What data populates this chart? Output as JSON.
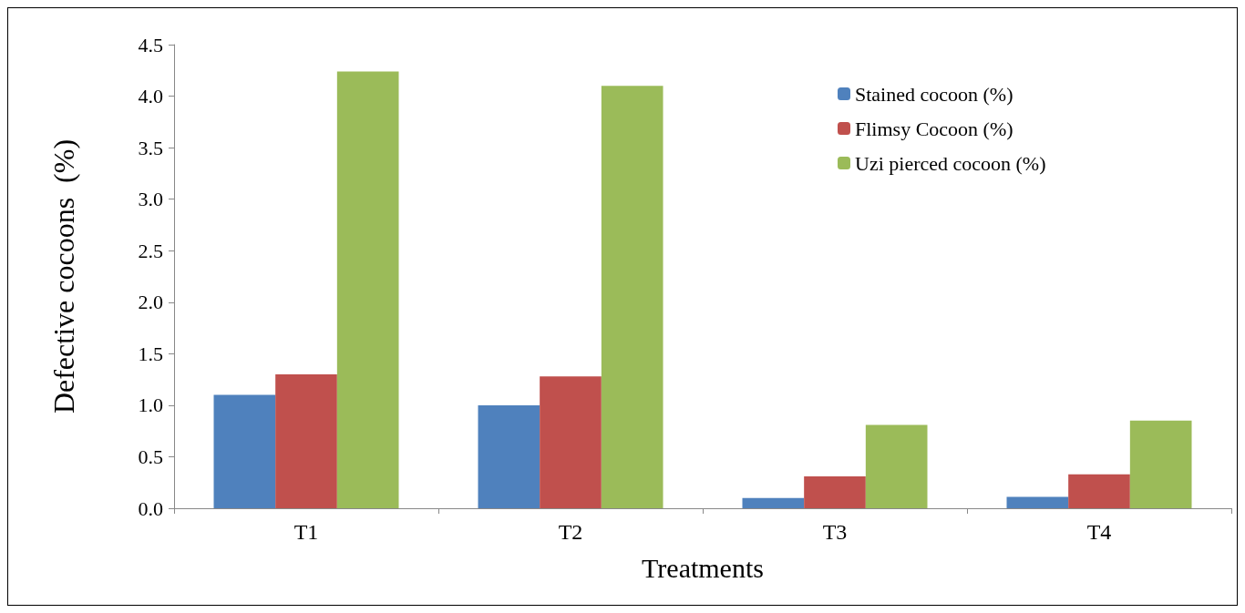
{
  "chart_data": {
    "type": "bar",
    "xlabel": "Treatments",
    "ylabel": "Defective cocoons  (%)",
    "categories": [
      "T1",
      "T2",
      "T3",
      "T4"
    ],
    "series": [
      {
        "name": "Stained cocoon (%)",
        "color": "#4f81bd",
        "values": [
          1.1,
          1.0,
          0.1,
          0.11
        ]
      },
      {
        "name": "Flimsy Cocoon (%)",
        "color": "#c0504d",
        "values": [
          1.3,
          1.28,
          0.31,
          0.33
        ]
      },
      {
        "name": "Uzi pierced cocoon (%)",
        "color": "#9bbb59",
        "values": [
          4.24,
          4.1,
          0.81,
          0.85
        ]
      }
    ],
    "ylim": [
      0,
      4.5
    ],
    "yticks": [
      {
        "value": 0,
        "label": "0.0"
      },
      {
        "value": 0.5,
        "label": "0.5"
      },
      {
        "value": 1,
        "label": "1.0"
      },
      {
        "value": 1.5,
        "label": "1.5"
      },
      {
        "value": 2,
        "label": "2.0"
      },
      {
        "value": 2.5,
        "label": "2.5"
      },
      {
        "value": 3,
        "label": "3.0"
      },
      {
        "value": 3.5,
        "label": "3.5"
      },
      {
        "value": 4,
        "label": "4.0"
      },
      {
        "value": 4.5,
        "label": "4.5"
      }
    ],
    "grid": false,
    "legend": "top right"
  }
}
